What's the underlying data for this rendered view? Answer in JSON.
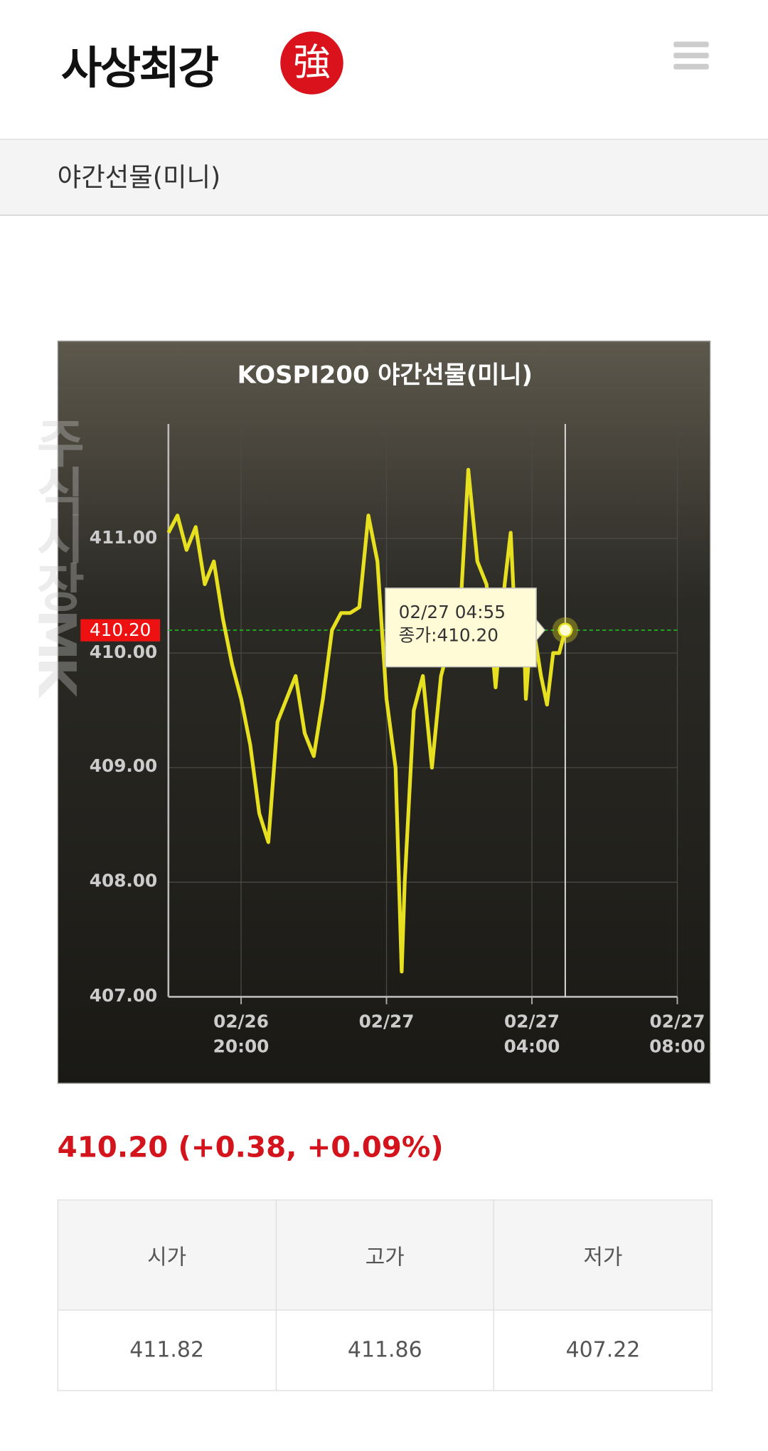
{
  "header": {
    "logo": "사상최강",
    "badge": "強"
  },
  "page_title": "야간선물(미니)",
  "watermark": "주식시장MK",
  "chart_data": {
    "type": "line",
    "title": "KOSPI200 야간선물(미니)",
    "x": [
      "02/26 18:00",
      "02/26 18:15",
      "02/26 18:30",
      "02/26 18:45",
      "02/26 19:00",
      "02/26 19:15",
      "02/26 19:30",
      "02/26 19:45",
      "02/26 20:00",
      "02/26 20:15",
      "02/26 20:30",
      "02/26 20:45",
      "02/26 21:00",
      "02/26 21:15",
      "02/26 21:30",
      "02/26 21:45",
      "02/26 22:00",
      "02/26 22:15",
      "02/26 22:30",
      "02/26 22:45",
      "02/26 23:00",
      "02/26 23:15",
      "02/26 23:30",
      "02/26 23:45",
      "02/27 00:00",
      "02/27 00:15",
      "02/27 00:25",
      "02/27 00:30",
      "02/27 00:45",
      "02/27 01:00",
      "02/27 01:15",
      "02/27 01:30",
      "02/27 01:45",
      "02/27 02:00",
      "02/27 02:15",
      "02/27 02:30",
      "02/27 02:45",
      "02/27 03:00",
      "02/27 03:15",
      "02/27 03:25",
      "02/27 03:30",
      "02/27 03:45",
      "02/27 03:50",
      "02/27 04:00",
      "02/27 04:15",
      "02/27 04:25",
      "02/27 04:35",
      "02/27 04:45",
      "02/27 04:55"
    ],
    "values": [
      411.05,
      411.2,
      410.9,
      411.1,
      410.6,
      410.8,
      410.3,
      409.9,
      409.6,
      409.2,
      408.6,
      408.35,
      409.4,
      409.6,
      409.8,
      409.3,
      409.1,
      409.6,
      410.2,
      410.35,
      410.35,
      410.4,
      411.2,
      410.8,
      409.6,
      409.0,
      407.22,
      408.0,
      409.5,
      409.8,
      409.0,
      409.8,
      410.1,
      410.2,
      411.6,
      410.8,
      410.6,
      409.7,
      410.6,
      411.05,
      410.5,
      410.5,
      409.6,
      410.3,
      409.8,
      409.55,
      410.0,
      410.0,
      410.2
    ],
    "color": "#e6e020",
    "xlim": [
      "02/26 18:00",
      "02/27 08:00"
    ],
    "xticks": [
      {
        "value": "02/26 20:00",
        "label": "02/26\n20:00"
      },
      {
        "value": "02/27 00:00",
        "label": "02/27"
      },
      {
        "value": "02/27 04:00",
        "label": "02/27\n04:00"
      },
      {
        "value": "02/27 08:00",
        "label": "02/27\n08:00"
      }
    ],
    "ylim": [
      407,
      412
    ],
    "yticks": [
      {
        "value": 407,
        "label": "407.00"
      },
      {
        "value": 408,
        "label": "408.00"
      },
      {
        "value": 409,
        "label": "409.00"
      },
      {
        "value": 410,
        "label": "410.00"
      },
      {
        "value": 411,
        "label": "411.00"
      }
    ],
    "grid": true,
    "reference_line": {
      "value": 410.2,
      "label": "410.20",
      "color": "#22aa22"
    },
    "tooltip": {
      "time": "02/27 04:55",
      "text": "종가:410.20"
    }
  },
  "summary": "410.20 (+0.38, +0.09%)",
  "table": {
    "headers": [
      "시가",
      "고가",
      "저가"
    ],
    "rows": [
      [
        "411.82",
        "411.86",
        "407.22"
      ]
    ]
  }
}
